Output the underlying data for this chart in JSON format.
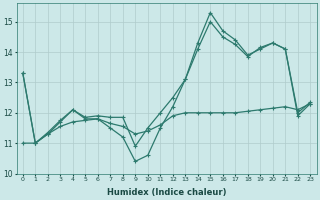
{
  "xlabel": "Humidex (Indice chaleur)",
  "bg_color": "#cce8e8",
  "grid_color": "#b0cccc",
  "line_color": "#2d7a6e",
  "x_values": [
    0,
    1,
    2,
    3,
    4,
    5,
    6,
    7,
    8,
    9,
    10,
    11,
    12,
    13,
    14,
    15,
    16,
    17,
    18,
    19,
    20,
    21,
    22,
    23
  ],
  "series1": [
    13.3,
    11.0,
    11.3,
    11.7,
    12.1,
    11.8,
    11.8,
    11.5,
    11.2,
    10.4,
    10.6,
    11.5,
    12.2,
    13.1,
    14.3,
    15.3,
    14.7,
    14.4,
    13.9,
    14.1,
    14.3,
    14.1,
    11.9,
    12.3
  ],
  "series2": [
    13.3,
    11.0,
    11.35,
    11.75,
    12.1,
    11.85,
    11.9,
    11.85,
    11.85,
    10.9,
    11.5,
    12.0,
    12.5,
    13.1,
    14.1,
    15.0,
    14.5,
    14.25,
    13.85,
    14.15,
    14.3,
    14.1,
    12.0,
    12.35
  ],
  "series3": [
    11.0,
    11.0,
    11.3,
    11.55,
    11.7,
    11.75,
    11.8,
    11.65,
    11.55,
    11.3,
    11.4,
    11.6,
    11.9,
    12.0,
    12.0,
    12.0,
    12.0,
    12.0,
    12.05,
    12.1,
    12.15,
    12.2,
    12.1,
    12.3
  ],
  "ylim": [
    10.0,
    15.6
  ],
  "xlim": [
    -0.5,
    23.5
  ],
  "yticks": [
    10,
    11,
    12,
    13,
    14,
    15
  ],
  "xticks": [
    0,
    1,
    2,
    3,
    4,
    5,
    6,
    7,
    8,
    9,
    10,
    11,
    12,
    13,
    14,
    15,
    16,
    17,
    18,
    19,
    20,
    21,
    22,
    23
  ]
}
